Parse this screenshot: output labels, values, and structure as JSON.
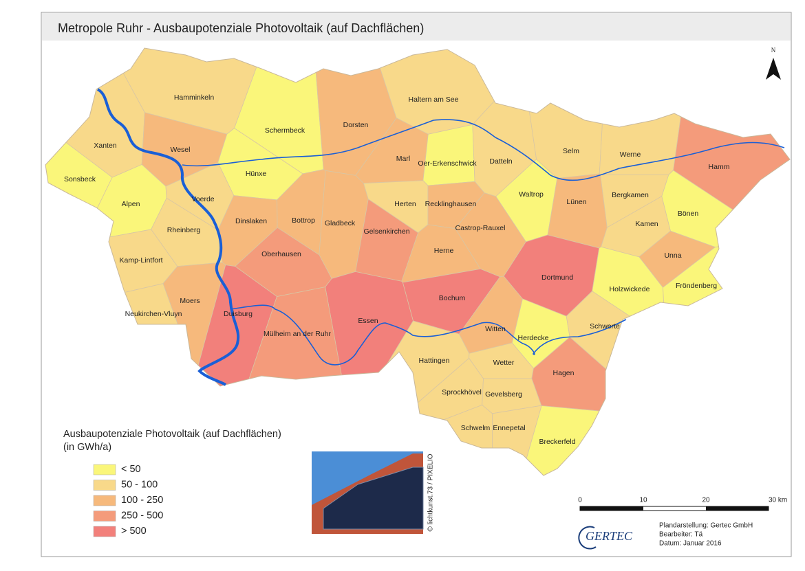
{
  "header": {
    "title": "Metropole Ruhr - Ausbaupotenziale Photovoltaik (auf Dachflächen)"
  },
  "north": "N",
  "legend": {
    "title": "Ausbaupotenziale Photovoltaik (auf Dachflächen)",
    "subtitle": "(in GWh/a)",
    "items": [
      {
        "label": "< 50",
        "color": "#faf67a"
      },
      {
        "label": "50 - 100",
        "color": "#f8d98a"
      },
      {
        "label": "100 - 250",
        "color": "#f6b97c"
      },
      {
        "label": "250 - 500",
        "color": "#f49b7b"
      },
      {
        "label": "> 500",
        "color": "#f2807b"
      }
    ]
  },
  "cities": [
    {
      "name": "Hamminkeln",
      "class": 1
    },
    {
      "name": "Schermbeck",
      "class": 0
    },
    {
      "name": "Dorsten",
      "class": 2
    },
    {
      "name": "Haltern am See",
      "class": 1
    },
    {
      "name": "Xanten",
      "class": 1
    },
    {
      "name": "Wesel",
      "class": 2
    },
    {
      "name": "Sonsbeck",
      "class": 0
    },
    {
      "name": "Hünxe",
      "class": 0
    },
    {
      "name": "Marl",
      "class": 2
    },
    {
      "name": "Oer-Erkenschwick",
      "class": 0
    },
    {
      "name": "Datteln",
      "class": 1
    },
    {
      "name": "Selm",
      "class": 1
    },
    {
      "name": "Werne",
      "class": 1
    },
    {
      "name": "Hamm",
      "class": 3
    },
    {
      "name": "Alpen",
      "class": 0
    },
    {
      "name": "Voerde",
      "class": 1
    },
    {
      "name": "Waltrop",
      "class": 0
    },
    {
      "name": "Lünen",
      "class": 2
    },
    {
      "name": "Bergkamen",
      "class": 1
    },
    {
      "name": "Bönen",
      "class": 0
    },
    {
      "name": "Dinslaken",
      "class": 2
    },
    {
      "name": "Bottrop",
      "class": 2
    },
    {
      "name": "Gladbeck",
      "class": 2
    },
    {
      "name": "Herten",
      "class": 1
    },
    {
      "name": "Recklinghausen",
      "class": 2
    },
    {
      "name": "Gelsenkirchen",
      "class": 3
    },
    {
      "name": "Castrop-Rauxel",
      "class": 2
    },
    {
      "name": "Kamen",
      "class": 1
    },
    {
      "name": "Rheinberg",
      "class": 1
    },
    {
      "name": "Kamp-Lintfort",
      "class": 1
    },
    {
      "name": "Oberhausen",
      "class": 3
    },
    {
      "name": "Herne",
      "class": 2
    },
    {
      "name": "Unna",
      "class": 2
    },
    {
      "name": "Dortmund",
      "class": 4
    },
    {
      "name": "Holzwickede",
      "class": 0
    },
    {
      "name": "Fröndenberg",
      "class": 0
    },
    {
      "name": "Moers",
      "class": 2
    },
    {
      "name": "Neukirchen-Vluyn",
      "class": 1
    },
    {
      "name": "Duisburg",
      "class": 4
    },
    {
      "name": "Bochum",
      "class": 4
    },
    {
      "name": "Essen",
      "class": 4
    },
    {
      "name": "Mülheim an der Ruhr",
      "class": 3
    },
    {
      "name": "Witten",
      "class": 2
    },
    {
      "name": "Herdecke",
      "class": 0
    },
    {
      "name": "Schwerte",
      "class": 1
    },
    {
      "name": "Hattingen",
      "class": 1
    },
    {
      "name": "Wetter",
      "class": 1
    },
    {
      "name": "Hagen",
      "class": 3
    },
    {
      "name": "Sprockhövel",
      "class": 1
    },
    {
      "name": "Gevelsberg",
      "class": 1
    },
    {
      "name": "Schwelm",
      "class": 1
    },
    {
      "name": "Ennepetal",
      "class": 1
    },
    {
      "name": "Breckerfeld",
      "class": 0
    }
  ],
  "scale": {
    "labels": [
      "0",
      "10",
      "20",
      "30 km"
    ]
  },
  "photo_credit": "© lichtkunst.73 / PIXELIO",
  "logo": "GERTEC",
  "credits": [
    "Plandarstellung: Gertec GmbH",
    "Bearbeiter: Tä",
    "Datum: Januar 2016"
  ]
}
